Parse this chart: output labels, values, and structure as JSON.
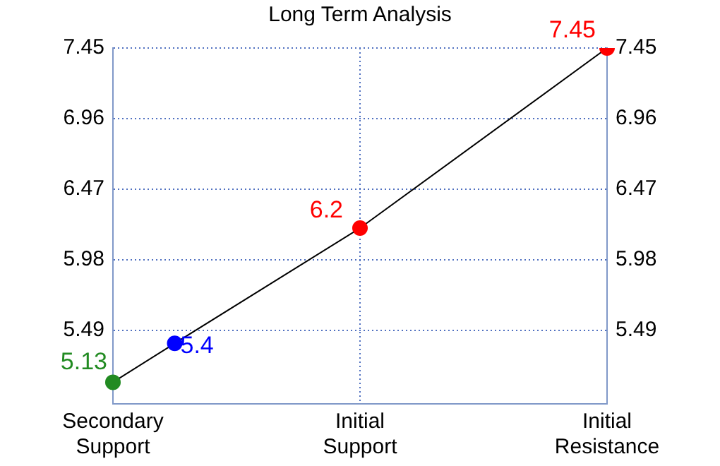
{
  "chart_data": {
    "type": "line",
    "title": "Long Term Analysis",
    "categories": [
      "Secondary Support",
      null,
      null,
      null,
      "Initial Support",
      null,
      null,
      null,
      "Initial Resistance"
    ],
    "series": [
      {
        "color": "#000000",
        "colors": [
          "#228b22",
          "#0000ff",
          null,
          null,
          "#ff0000",
          null,
          null,
          null,
          "#ff0000"
        ],
        "values": [
          5.13,
          5.4,
          null,
          null,
          6.2,
          null,
          null,
          null,
          7.45
        ]
      }
    ],
    "ylim": [
      4.98,
      7.45
    ],
    "yticks": [
      5.49,
      5.98,
      6.47,
      6.96,
      7.45
    ],
    "y2lim": [
      4.98,
      7.45
    ],
    "y2ticks": [
      5.49,
      5.98,
      6.47,
      6.96,
      7.45
    ],
    "grid": true,
    "marker": "circle",
    "line_style": "solid",
    "data_labels": true,
    "legend": false
  }
}
